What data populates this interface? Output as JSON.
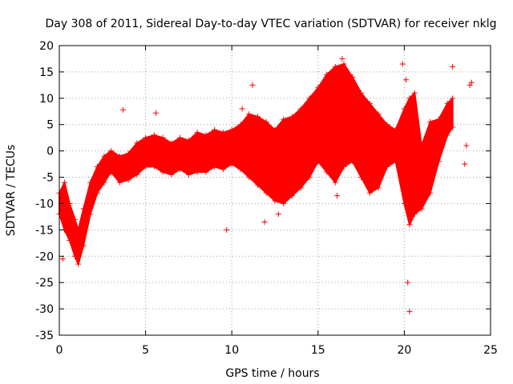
{
  "chart_data": {
    "type": "scatter",
    "title": "Day 308 of 2011, Sidereal Day-to-day VTEC variation (SDTVAR) for receiver nklg",
    "xlabel": "GPS time / hours",
    "ylabel": "SDTVAR / TECUs",
    "xlim": [
      0,
      25
    ],
    "ylim": [
      -35,
      20
    ],
    "xticks": [
      0,
      5,
      10,
      15,
      20,
      25
    ],
    "yticks": [
      -35,
      -30,
      -25,
      -20,
      -15,
      -10,
      -5,
      0,
      5,
      10,
      15,
      20
    ],
    "grid": true,
    "legend": "none",
    "marker": "+",
    "color": "#ff0000",
    "series": [
      {
        "name": "SDTVAR",
        "envelope": {
          "x": [
            0.0,
            0.3,
            0.6,
            0.9,
            1.1,
            1.4,
            1.8,
            2.2,
            2.6,
            3.0,
            3.5,
            4.0,
            4.5,
            5.0,
            5.5,
            6.0,
            6.5,
            7.0,
            7.5,
            8.0,
            8.5,
            9.0,
            9.5,
            10.0,
            10.5,
            11.0,
            11.5,
            12.0,
            12.5,
            13.0,
            13.5,
            14.0,
            14.5,
            15.0,
            15.5,
            16.0,
            16.5,
            17.0,
            17.5,
            18.0,
            18.5,
            19.0,
            19.5,
            20.0,
            20.3,
            20.6,
            21.0,
            21.5,
            22.0,
            22.5,
            22.8
          ],
          "upper": [
            -8.0,
            -6.0,
            -10.0,
            -13.0,
            -15.0,
            -11.0,
            -6.0,
            -3.0,
            -1.0,
            0.0,
            -1.0,
            -0.5,
            1.5,
            2.5,
            3.0,
            2.5,
            1.5,
            2.5,
            2.0,
            3.5,
            3.0,
            4.0,
            3.5,
            4.0,
            5.0,
            7.0,
            6.5,
            5.5,
            4.0,
            6.0,
            6.5,
            8.0,
            10.0,
            12.0,
            14.5,
            16.0,
            16.5,
            14.0,
            11.0,
            9.0,
            7.0,
            5.0,
            4.0,
            8.0,
            10.0,
            11.0,
            1.0,
            5.5,
            6.0,
            9.0,
            10.0
          ],
          "lower": [
            -12.0,
            -15.0,
            -17.0,
            -20.0,
            -21.5,
            -18.0,
            -12.0,
            -8.0,
            -6.0,
            -4.0,
            -6.0,
            -5.5,
            -4.5,
            -3.0,
            -3.0,
            -4.0,
            -4.5,
            -3.5,
            -4.5,
            -4.0,
            -4.0,
            -3.0,
            -3.5,
            -2.5,
            -3.5,
            -5.0,
            -6.5,
            -8.0,
            -9.5,
            -10.0,
            -8.5,
            -7.0,
            -5.0,
            -2.0,
            -4.0,
            -6.0,
            -3.0,
            -2.0,
            -5.0,
            -8.0,
            -7.0,
            -3.0,
            -2.0,
            -10.0,
            -14.0,
            -12.0,
            -11.0,
            -8.0,
            -2.0,
            3.0,
            4.5
          ]
        },
        "outliers": {
          "x": [
            0.2,
            3.7,
            5.6,
            9.7,
            10.6,
            11.2,
            11.9,
            12.7,
            16.1,
            16.4,
            18.3,
            19.9,
            20.1,
            20.2,
            20.3,
            22.8,
            23.5,
            23.6,
            23.8,
            23.9
          ],
          "y": [
            -20.5,
            7.8,
            7.2,
            -15.0,
            8.0,
            12.5,
            -13.5,
            -12.0,
            -8.5,
            17.5,
            -5.0,
            16.5,
            13.5,
            -25.0,
            -30.5,
            16.0,
            -2.5,
            1.0,
            12.5,
            13.0
          ]
        }
      }
    ]
  }
}
